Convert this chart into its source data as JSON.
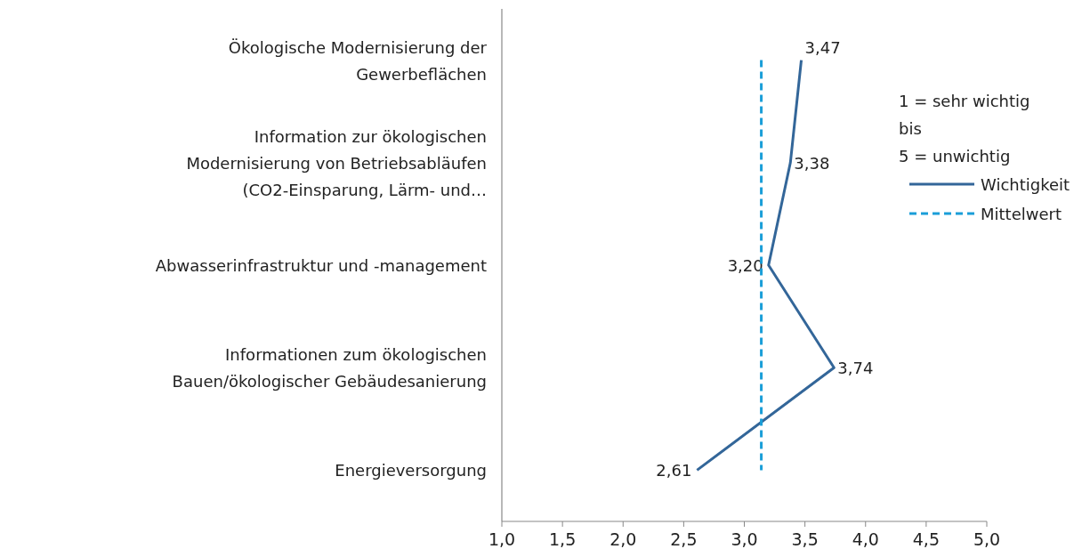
{
  "chart_data": {
    "type": "line",
    "orientation": "horizontal",
    "categories": [
      "Ökologische Modernisierung der Gewerbeflächen",
      "Information zur ökologischen Modernisierung von Betriebsabläufen (CO2-Einsparung, Lärm- und…",
      "Abwasserinfrastruktur und -management",
      "Informationen zum ökologischen Bauen/ökologischer Gebäudesanierung",
      "Energieversorgung"
    ],
    "series": [
      {
        "name": "Wichtigkeit",
        "color": "#336699",
        "values": [
          3.47,
          3.38,
          3.2,
          3.74,
          2.61
        ],
        "value_labels": [
          "3,47",
          "3,38",
          "3,20",
          "3,74",
          "2,61"
        ],
        "line_style": "solid"
      },
      {
        "name": "Mittelwert",
        "color": "#1a9ed8",
        "values": [
          3.14,
          3.14,
          3.14,
          3.14,
          3.14
        ],
        "line_style": "dashed"
      }
    ],
    "xlim": [
      1,
      5
    ],
    "xticks": [
      {
        "value": 1,
        "label": "1,0"
      },
      {
        "value": 1.5,
        "label": "1,5"
      },
      {
        "value": 2,
        "label": "2,0"
      },
      {
        "value": 2.5,
        "label": "2,5"
      },
      {
        "value": 3,
        "label": "3,0"
      },
      {
        "value": 3.5,
        "label": "3,5"
      },
      {
        "value": 4,
        "label": "4,0"
      },
      {
        "value": 4.5,
        "label": "4,5"
      },
      {
        "value": 5,
        "label": "5,0"
      }
    ],
    "grid": false,
    "legend": "right",
    "marker": "none",
    "annotations": [
      "1 = sehr wichtig",
      "bis",
      "5 = unwichtig"
    ]
  }
}
